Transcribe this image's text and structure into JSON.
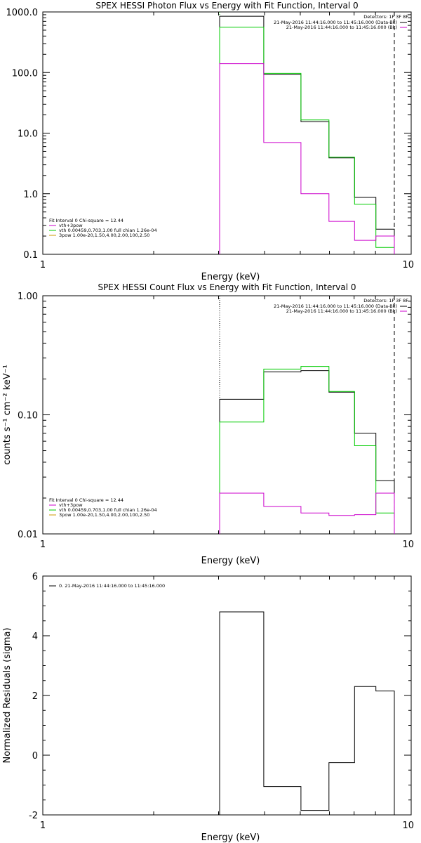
{
  "colors": {
    "black": "#000000",
    "magenta": "#cc00cc",
    "green": "#00cc00",
    "orange": "#cc9900"
  },
  "chart_data": [
    {
      "type": "line",
      "title": "SPEX HESSI Photon Flux vs Energy with Fit Function, Interval 0",
      "xlabel": "Energy (keV)",
      "ylabel": "",
      "xscale": "log",
      "yscale": "log",
      "xlim": [
        1,
        10
      ],
      "ylim": [
        0.1,
        1000
      ],
      "x_ticks": [
        {
          "v": 1,
          "t": "1"
        },
        {
          "v": 10,
          "t": "10"
        }
      ],
      "y_ticks": [
        {
          "v": 1000,
          "t": "1000.0"
        },
        {
          "v": 100,
          "t": "100.0"
        },
        {
          "v": 10,
          "t": "10.0"
        },
        {
          "v": 1,
          "t": "1.0"
        },
        {
          "v": 0.1,
          "t": "0.1"
        }
      ],
      "vlines": [
        {
          "x": 3.02,
          "style": "dotted",
          "color": "green"
        },
        {
          "x": 9.0,
          "style": "dashed",
          "color": "black"
        }
      ],
      "bin_edges": [
        3.02,
        3.98,
        5.02,
        5.98,
        7.02,
        8.02,
        9.0
      ],
      "series": [
        {
          "color": "black",
          "values": [
            850,
            93,
            15.5,
            3.9,
            0.87,
            0.26
          ]
        },
        {
          "color": "green",
          "values": [
            560,
            97,
            16.5,
            4.0,
            0.67,
            0.13
          ]
        },
        {
          "color": "magenta",
          "values": [
            140,
            7,
            1.0,
            0.35,
            0.17,
            0.2
          ]
        }
      ],
      "legend_right": {
        "header": "Detectors: 1F 3F 8F",
        "entries": [
          {
            "text": "21-May-2016 11:44:16.000 to 11:45:16.000 (Data-Bk)",
            "color": "black"
          },
          {
            "text": "21-May-2016 11:44:16.000 to 11:45:16.000 (Bk)",
            "color": "magenta"
          }
        ]
      },
      "legend_left": {
        "header": "Fit Interval 0   Chi-square = 12.44",
        "entries": [
          {
            "text": "vth+3pow",
            "color": "magenta"
          },
          {
            "text": "vth 0.00459,0.703,1.00  full chian 1.26e-04",
            "color": "green"
          },
          {
            "text": "3pow 1.00e-20,1.50,4.00,2.00,100,2.50",
            "color": "orange"
          }
        ]
      }
    },
    {
      "type": "line",
      "title": "SPEX HESSI Count Flux vs Energy with Fit Function, Interval 0",
      "xlabel": "Energy (keV)",
      "ylabel": "counts s⁻¹ cm⁻² keV⁻¹",
      "xscale": "log",
      "yscale": "log",
      "xlim": [
        1,
        10
      ],
      "ylim": [
        0.01,
        1.0
      ],
      "x_ticks": [
        {
          "v": 1,
          "t": "1"
        },
        {
          "v": 10,
          "t": "10"
        }
      ],
      "y_ticks": [
        {
          "v": 1.0,
          "t": "1.00"
        },
        {
          "v": 0.1,
          "t": "0.10"
        },
        {
          "v": 0.01,
          "t": "0.01"
        }
      ],
      "vlines": [
        {
          "x": 3.02,
          "style": "dotted",
          "color": "black"
        },
        {
          "x": 9.0,
          "style": "dashed",
          "color": "black"
        }
      ],
      "bin_edges": [
        3.02,
        3.98,
        5.02,
        5.98,
        7.02,
        8.02,
        9.0
      ],
      "series": [
        {
          "color": "black",
          "values": [
            0.135,
            0.23,
            0.235,
            0.155,
            0.07,
            0.028
          ]
        },
        {
          "color": "green",
          "values": [
            0.087,
            0.242,
            0.255,
            0.157,
            0.055,
            0.015
          ]
        },
        {
          "color": "magenta",
          "values": [
            0.022,
            0.017,
            0.015,
            0.0143,
            0.0145,
            0.022
          ]
        }
      ],
      "legend_right": {
        "header": "Detectors: 1F 3F 8F",
        "entries": [
          {
            "text": "21-May-2016 11:44:16.000 to 11:45:16.000 (Data-Bk)",
            "color": "black"
          },
          {
            "text": "21-May-2016 11:44:16.000 to 11:45:16.000 (Bk)",
            "color": "magenta"
          }
        ]
      },
      "legend_left": {
        "header": "Fit Interval 0   Chi-square = 12.44",
        "entries": [
          {
            "text": "vth+3pow",
            "color": "magenta"
          },
          {
            "text": "vth 0.00459,0.703,1.00  full chian 1.26e-04",
            "color": "green"
          },
          {
            "text": "3pow 1.00e-20,1.50,4.00,2.00,100,2.50",
            "color": "orange"
          }
        ]
      }
    },
    {
      "type": "line",
      "title": "",
      "xlabel": "Energy (keV)",
      "ylabel": "Normalized Residuals (sigma)",
      "xscale": "log",
      "yscale": "linear",
      "xlim": [
        1,
        10
      ],
      "ylim": [
        -2,
        6
      ],
      "x_ticks": [
        {
          "v": 1,
          "t": "1"
        },
        {
          "v": 10,
          "t": "10"
        }
      ],
      "y_ticks": [
        {
          "v": 6,
          "t": "6"
        },
        {
          "v": 4,
          "t": "4"
        },
        {
          "v": 2,
          "t": "2"
        },
        {
          "v": 0,
          "t": "0"
        },
        {
          "v": -2,
          "t": "-2"
        }
      ],
      "vlines": [],
      "bin_edges": [
        3.02,
        3.98,
        5.02,
        5.98,
        7.02,
        8.02,
        9.0
      ],
      "series": [
        {
          "color": "black",
          "values": [
            4.8,
            -1.05,
            -1.85,
            -0.25,
            2.3,
            2.15
          ]
        }
      ],
      "legend_right": null,
      "legend_left_top": {
        "entries": [
          {
            "text": "0. 21-May-2016 11:44:16.000 to 11:45:16.000",
            "color": "black"
          }
        ]
      }
    }
  ]
}
